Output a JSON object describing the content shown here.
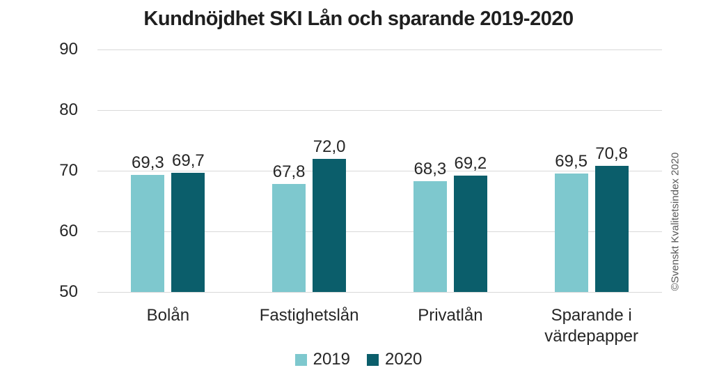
{
  "title": "Kundnöjdhet SKI Lån och sparande 2019-2020",
  "copyright": "©Svenskt Kvalitetsindex 2020",
  "colors": {
    "series_2019": "#7EC8CE",
    "series_2020": "#0B5E6B",
    "gridline": "#D9D9D9",
    "text": "#262626",
    "copyright_text": "#595959"
  },
  "chart_data": {
    "type": "bar",
    "title": "Kundnöjdhet SKI Lån och sparande 2019-2020",
    "categories": [
      "Bolån",
      "Fastighetslån",
      "Privatlån",
      "Sparande i värdepapper"
    ],
    "series": [
      {
        "name": "2019",
        "color": "#7EC8CE",
        "values": [
          69.3,
          67.8,
          68.3,
          69.5
        ],
        "labels": [
          "69,3",
          "67,8",
          "68,3",
          "69,5"
        ]
      },
      {
        "name": "2020",
        "color": "#0B5E6B",
        "values": [
          69.7,
          72.0,
          69.2,
          70.8
        ],
        "labels": [
          "69,7",
          "72,0",
          "69,2",
          "70,8"
        ]
      }
    ],
    "ylim": [
      50,
      90
    ],
    "yticks": [
      90,
      80,
      70,
      60,
      50
    ],
    "xlabel": "",
    "ylabel": "",
    "grid": true,
    "legend_position": "bottom",
    "decimal_separator": ","
  },
  "legend": [
    {
      "label": "2019",
      "color": "#7EC8CE"
    },
    {
      "label": "2020",
      "color": "#0B5E6B"
    }
  ]
}
